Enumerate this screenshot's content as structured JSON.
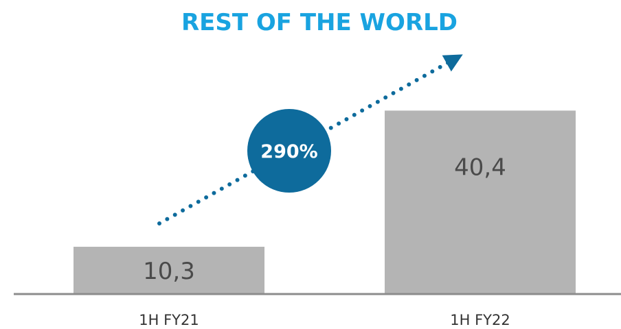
{
  "chart_data": {
    "type": "bar",
    "title": "REST OF THE WORLD",
    "categories": [
      "1H FY21",
      "1H FY22"
    ],
    "values": [
      10.3,
      40.4
    ],
    "value_labels": [
      "10,3",
      "40,4"
    ],
    "growth_label": "290%",
    "ylim": [
      0,
      50
    ],
    "grid": false,
    "legend": "none"
  },
  "colors": {
    "title": "#19a3e0",
    "bars": "#b4b4b4",
    "axis": "#8c8c8c",
    "badge": "#0e6b9c",
    "trend": "#0e6b9c",
    "value_text": "#4a4a4a"
  }
}
